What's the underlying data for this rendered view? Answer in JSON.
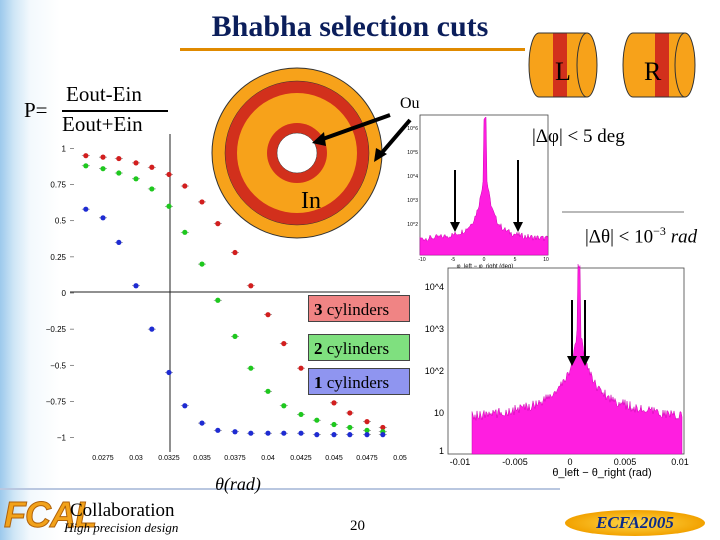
{
  "slide": {
    "title": "Bhabha selection cuts",
    "page_number": "20",
    "footer_brand": "FCAL",
    "footer_collab": "Collaboration",
    "footer_sub": "High precision design",
    "footer_conf": "ECFA2005"
  },
  "formula": {
    "lhs": "P=",
    "numerator": "Eout-Ein",
    "denominator": "Eout+Ein"
  },
  "rings": {
    "label_in": "In",
    "label_out": "Out"
  },
  "detectors": {
    "left_label": "L",
    "right_label": "R"
  },
  "cuts": {
    "phi": "|Δφ| < 5 deg",
    "theta_prefix": "|Δθ| < 10",
    "theta_exp": "−3",
    "theta_unit": "rad"
  },
  "legend": {
    "items": [
      {
        "count": "3",
        "text": " cylinders",
        "color": "#f08484"
      },
      {
        "count": "2",
        "text": " cylinders",
        "color": "#7fe07f"
      },
      {
        "count": "1",
        "text": " cylinders",
        "color": "#8f95f0"
      }
    ]
  },
  "colors": {
    "ring_outer": "#f7a21a",
    "ring_middle": "#d2301c",
    "hist_fill": "#ff1ee0",
    "title_color": "#0b1e5b"
  },
  "chart_data": [
    {
      "type": "scatter",
      "xlabel": "θ(rad)",
      "ylabel": "",
      "xlim": [
        0.025,
        0.05
      ],
      "ylim": [
        -1.1,
        1.1
      ],
      "x_ticks": [
        "0.0275",
        "0.03",
        "0.0325",
        "0.035",
        "0.0375",
        "0.04",
        "0.0425",
        "0.045",
        "0.0475",
        "0.05"
      ],
      "y_ticks": [
        "1",
        "0.75",
        "0.5",
        "0.25",
        "0",
        "−0.25",
        "−0.5",
        "−0.75",
        "−1"
      ],
      "series": [
        {
          "color": "#d21e1e",
          "x": [
            0.0262,
            0.0275,
            0.0287,
            0.03,
            0.0312,
            0.0325,
            0.0337,
            0.035,
            0.0362,
            0.0375,
            0.0387,
            0.04,
            0.0412,
            0.0425,
            0.0437,
            0.045,
            0.0462,
            0.0475,
            0.0487
          ],
          "y": [
            0.95,
            0.94,
            0.93,
            0.9,
            0.87,
            0.82,
            0.74,
            0.63,
            0.48,
            0.28,
            0.05,
            -0.15,
            -0.35,
            -0.52,
            -0.66,
            -0.76,
            -0.83,
            -0.89,
            -0.93
          ]
        },
        {
          "color": "#1ec81e",
          "x": [
            0.0262,
            0.0275,
            0.0287,
            0.03,
            0.0312,
            0.0325,
            0.0337,
            0.035,
            0.0362,
            0.0375,
            0.0387,
            0.04,
            0.0412,
            0.0425,
            0.0437,
            0.045,
            0.0462,
            0.0475,
            0.0487
          ],
          "y": [
            0.88,
            0.86,
            0.83,
            0.79,
            0.72,
            0.6,
            0.42,
            0.2,
            -0.05,
            -0.3,
            -0.52,
            -0.68,
            -0.78,
            -0.84,
            -0.88,
            -0.91,
            -0.93,
            -0.95,
            -0.96
          ]
        },
        {
          "color": "#1e2bd2",
          "x": [
            0.0262,
            0.0275,
            0.0287,
            0.03,
            0.0312,
            0.0325,
            0.0337,
            0.035,
            0.0362,
            0.0375,
            0.0387,
            0.04,
            0.0412,
            0.0425,
            0.0437,
            0.045,
            0.0462,
            0.0475,
            0.0487
          ],
          "y": [
            0.58,
            0.52,
            0.35,
            0.05,
            -0.25,
            -0.55,
            -0.78,
            -0.9,
            -0.95,
            -0.96,
            -0.97,
            -0.97,
            -0.97,
            -0.97,
            -0.98,
            -0.98,
            -0.98,
            -0.98,
            -0.98
          ]
        }
      ]
    },
    {
      "type": "area",
      "title": "",
      "xlabel": "φ_left − φ_right (deg)",
      "ylabel": "",
      "x_ticks": [
        "-10",
        "-5",
        "0",
        "5",
        "10"
      ],
      "y_ticks": [
        "10^6",
        "10^5",
        "10^4",
        "10^3",
        "10^2"
      ],
      "log_y": true
    },
    {
      "type": "area",
      "xlabel": "θ_left − θ_right (rad)",
      "x_ticks": [
        "-0.01",
        "-0.005",
        "0",
        "0.005",
        "0.01"
      ],
      "y_ticks": [
        "10^4",
        "10^3",
        "10^2",
        "10",
        "1"
      ],
      "log_y": true
    }
  ]
}
